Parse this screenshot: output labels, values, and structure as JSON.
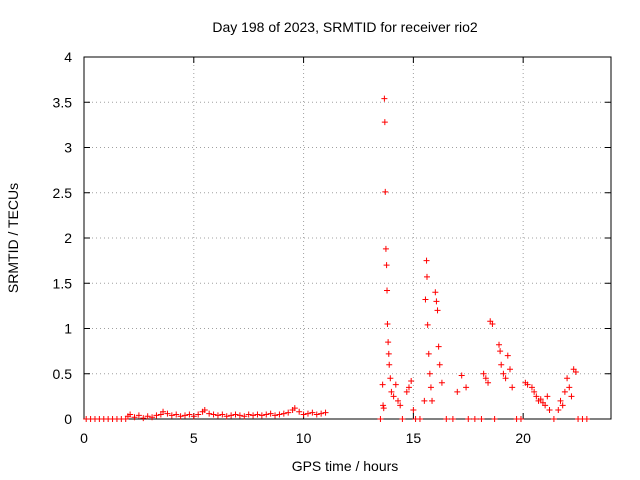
{
  "chart_data": {
    "type": "scatter",
    "title": "Day 198 of 2023, SRMTID for receiver rio2",
    "xlabel": "GPS time / hours",
    "ylabel": "SRMTID / TECUs",
    "xlim": [
      0,
      24
    ],
    "ylim": [
      0,
      4
    ],
    "x_ticks": [
      0,
      5,
      10,
      15,
      20
    ],
    "x_tick_labels": [
      "0",
      "5",
      "10",
      "15",
      "20"
    ],
    "y_ticks": [
      0,
      0.5,
      1,
      1.5,
      2,
      2.5,
      3,
      3.5,
      4
    ],
    "y_tick_labels": [
      "0",
      "0.5",
      "1",
      "1.5",
      "2",
      "2.5",
      "3",
      "3.5",
      "4"
    ],
    "grid": true,
    "marker": "+",
    "series": [
      {
        "name": "SRMTID",
        "color": "#ff0000",
        "points": [
          [
            0.1,
            0
          ],
          [
            0.3,
            0
          ],
          [
            0.5,
            0
          ],
          [
            0.7,
            0
          ],
          [
            0.9,
            0
          ],
          [
            1.1,
            0
          ],
          [
            1.3,
            0
          ],
          [
            1.5,
            0
          ],
          [
            1.7,
            0
          ],
          [
            1.9,
            0
          ],
          [
            2.0,
            0.03
          ],
          [
            2.1,
            0.05
          ],
          [
            2.3,
            0.02
          ],
          [
            2.5,
            0.04
          ],
          [
            2.7,
            0.01
          ],
          [
            2.9,
            0.03
          ],
          [
            3.1,
            0.02
          ],
          [
            3.3,
            0.04
          ],
          [
            3.5,
            0.05
          ],
          [
            3.6,
            0.08
          ],
          [
            3.8,
            0.06
          ],
          [
            4.0,
            0.04
          ],
          [
            4.2,
            0.05
          ],
          [
            4.4,
            0.03
          ],
          [
            4.6,
            0.04
          ],
          [
            4.8,
            0.05
          ],
          [
            5.0,
            0.03
          ],
          [
            5.2,
            0.05
          ],
          [
            5.4,
            0.08
          ],
          [
            5.5,
            0.1
          ],
          [
            5.7,
            0.06
          ],
          [
            5.9,
            0.05
          ],
          [
            6.1,
            0.04
          ],
          [
            6.3,
            0.05
          ],
          [
            6.5,
            0.03
          ],
          [
            6.7,
            0.04
          ],
          [
            6.9,
            0.05
          ],
          [
            7.1,
            0.04
          ],
          [
            7.3,
            0.03
          ],
          [
            7.5,
            0.05
          ],
          [
            7.7,
            0.04
          ],
          [
            7.9,
            0.05
          ],
          [
            8.1,
            0.04
          ],
          [
            8.3,
            0.05
          ],
          [
            8.5,
            0.06
          ],
          [
            8.7,
            0.04
          ],
          [
            8.9,
            0.05
          ],
          [
            9.1,
            0.06
          ],
          [
            9.3,
            0.07
          ],
          [
            9.5,
            0.1
          ],
          [
            9.6,
            0.12
          ],
          [
            9.8,
            0.08
          ],
          [
            10.0,
            0.05
          ],
          [
            10.2,
            0.06
          ],
          [
            10.4,
            0.07
          ],
          [
            10.6,
            0.05
          ],
          [
            10.8,
            0.06
          ],
          [
            11.0,
            0.07
          ],
          [
            13.5,
            0
          ],
          [
            13.6,
            0.38
          ],
          [
            13.62,
            0.15
          ],
          [
            13.65,
            0.12
          ],
          [
            13.68,
            3.54
          ],
          [
            13.7,
            3.28
          ],
          [
            13.72,
            2.51
          ],
          [
            13.75,
            1.88
          ],
          [
            13.78,
            1.7
          ],
          [
            13.8,
            1.42
          ],
          [
            13.82,
            1.05
          ],
          [
            13.85,
            0.85
          ],
          [
            13.88,
            0.72
          ],
          [
            13.9,
            0.6
          ],
          [
            13.95,
            0.45
          ],
          [
            14.0,
            0.3
          ],
          [
            14.1,
            0.25
          ],
          [
            14.2,
            0.38
          ],
          [
            14.3,
            0.2
          ],
          [
            14.4,
            0.15
          ],
          [
            14.5,
            0
          ],
          [
            14.7,
            0.3
          ],
          [
            14.8,
            0.35
          ],
          [
            14.9,
            0.42
          ],
          [
            15.0,
            0.1
          ],
          [
            15.1,
            0
          ],
          [
            15.3,
            0
          ],
          [
            15.5,
            0.2
          ],
          [
            15.55,
            1.32
          ],
          [
            15.6,
            1.75
          ],
          [
            15.62,
            1.57
          ],
          [
            15.65,
            1.04
          ],
          [
            15.7,
            0.72
          ],
          [
            15.75,
            0.5
          ],
          [
            15.8,
            0.35
          ],
          [
            15.85,
            0.2
          ],
          [
            16.0,
            1.4
          ],
          [
            16.05,
            1.3
          ],
          [
            16.1,
            1.2
          ],
          [
            16.15,
            0.8
          ],
          [
            16.2,
            0.6
          ],
          [
            16.3,
            0.4
          ],
          [
            16.5,
            0
          ],
          [
            16.8,
            0
          ],
          [
            17.0,
            0.3
          ],
          [
            17.2,
            0.48
          ],
          [
            17.4,
            0.35
          ],
          [
            17.5,
            0
          ],
          [
            17.8,
            0
          ],
          [
            18.1,
            0
          ],
          [
            18.2,
            0.5
          ],
          [
            18.3,
            0.45
          ],
          [
            18.4,
            0.4
          ],
          [
            18.5,
            1.08
          ],
          [
            18.6,
            1.05
          ],
          [
            18.7,
            0
          ],
          [
            18.9,
            0.82
          ],
          [
            18.95,
            0.75
          ],
          [
            19.0,
            0.6
          ],
          [
            19.1,
            0.5
          ],
          [
            19.2,
            0.45
          ],
          [
            19.3,
            0.7
          ],
          [
            19.4,
            0.55
          ],
          [
            19.5,
            0.35
          ],
          [
            19.7,
            0
          ],
          [
            19.9,
            0
          ],
          [
            20.1,
            0.4
          ],
          [
            20.2,
            0.38
          ],
          [
            20.4,
            0.35
          ],
          [
            20.5,
            0.3
          ],
          [
            20.6,
            0.25
          ],
          [
            20.7,
            0.2
          ],
          [
            20.8,
            0.22
          ],
          [
            20.9,
            0.18
          ],
          [
            21.0,
            0.15
          ],
          [
            21.1,
            0.25
          ],
          [
            21.2,
            0.1
          ],
          [
            21.4,
            0
          ],
          [
            21.6,
            0.1
          ],
          [
            21.7,
            0.2
          ],
          [
            21.8,
            0.15
          ],
          [
            21.9,
            0.3
          ],
          [
            22.0,
            0.45
          ],
          [
            22.1,
            0.35
          ],
          [
            22.2,
            0.25
          ],
          [
            22.3,
            0.55
          ],
          [
            22.4,
            0.52
          ],
          [
            22.5,
            0
          ],
          [
            22.7,
            0
          ],
          [
            22.9,
            0
          ]
        ]
      }
    ]
  }
}
